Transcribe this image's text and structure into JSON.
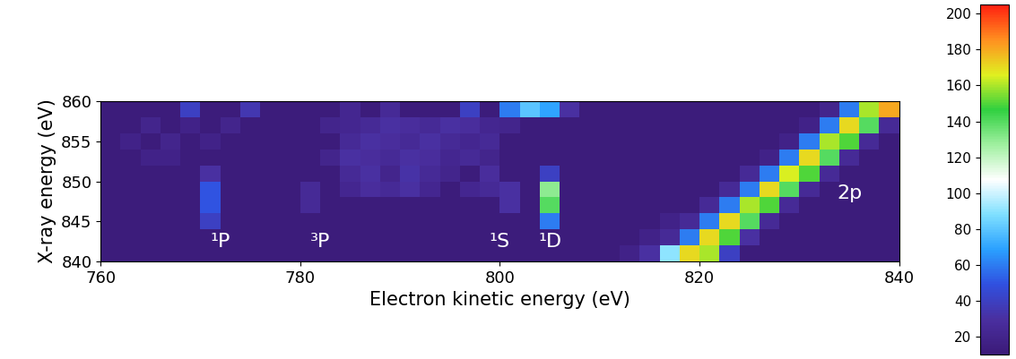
{
  "chart_data": {
    "type": "heatmap",
    "xlabel": "Electron kinetic energy (eV)",
    "ylabel": "X-ray energy (eV)",
    "x": [
      761,
      763,
      765,
      767,
      769,
      771,
      773,
      775,
      777,
      779,
      781,
      783,
      785,
      787,
      789,
      791,
      793,
      795,
      797,
      799,
      801,
      803,
      805,
      807,
      809,
      811,
      813,
      815,
      817,
      819,
      821,
      823,
      825,
      827,
      829,
      831,
      833,
      835,
      837,
      839
    ],
    "y": [
      841,
      843,
      845,
      847,
      849,
      851,
      853,
      855,
      857,
      859
    ],
    "cells": [
      [
        12,
        12,
        12,
        12,
        12,
        12,
        12,
        12,
        12,
        12,
        12,
        12,
        12,
        12,
        12,
        12,
        12,
        12,
        12,
        12,
        12,
        12,
        12,
        12,
        12,
        12,
        18,
        30,
        90,
        170,
        160,
        40,
        12,
        12,
        12,
        12,
        12,
        12,
        12,
        12
      ],
      [
        12,
        12,
        12,
        12,
        12,
        12,
        12,
        12,
        12,
        12,
        12,
        12,
        12,
        12,
        12,
        12,
        12,
        12,
        12,
        12,
        12,
        12,
        12,
        12,
        12,
        12,
        12,
        18,
        25,
        60,
        170,
        150,
        30,
        12,
        12,
        12,
        12,
        12,
        12,
        12
      ],
      [
        12,
        12,
        12,
        12,
        12,
        40,
        12,
        12,
        12,
        12,
        12,
        12,
        12,
        12,
        12,
        12,
        12,
        12,
        12,
        12,
        12,
        12,
        60,
        12,
        12,
        12,
        12,
        12,
        18,
        25,
        60,
        170,
        140,
        25,
        12,
        12,
        12,
        12,
        12,
        12
      ],
      [
        12,
        12,
        12,
        12,
        12,
        50,
        12,
        12,
        12,
        12,
        25,
        12,
        12,
        12,
        12,
        12,
        12,
        12,
        12,
        12,
        30,
        12,
        140,
        12,
        12,
        12,
        12,
        12,
        12,
        12,
        25,
        60,
        160,
        150,
        25,
        12,
        12,
        12,
        12,
        12
      ],
      [
        12,
        12,
        12,
        12,
        12,
        50,
        12,
        12,
        12,
        12,
        25,
        12,
        22,
        28,
        25,
        30,
        22,
        12,
        22,
        25,
        30,
        12,
        130,
        12,
        12,
        12,
        12,
        12,
        12,
        12,
        12,
        25,
        60,
        170,
        140,
        25,
        12,
        12,
        12,
        12
      ],
      [
        12,
        12,
        12,
        12,
        12,
        30,
        12,
        12,
        12,
        12,
        12,
        12,
        25,
        30,
        20,
        32,
        25,
        20,
        12,
        28,
        12,
        12,
        40,
        12,
        12,
        12,
        12,
        12,
        12,
        12,
        12,
        12,
        25,
        60,
        165,
        150,
        25,
        12,
        12,
        12
      ],
      [
        12,
        12,
        18,
        18,
        12,
        12,
        12,
        12,
        12,
        12,
        12,
        20,
        30,
        28,
        25,
        30,
        28,
        22,
        25,
        20,
        12,
        12,
        12,
        12,
        12,
        12,
        12,
        12,
        12,
        12,
        12,
        12,
        12,
        18,
        60,
        170,
        140,
        25,
        12,
        12
      ],
      [
        12,
        18,
        12,
        20,
        12,
        18,
        12,
        12,
        12,
        12,
        12,
        12,
        25,
        30,
        28,
        25,
        30,
        25,
        22,
        25,
        12,
        12,
        12,
        12,
        12,
        12,
        12,
        12,
        12,
        12,
        12,
        12,
        12,
        12,
        18,
        60,
        160,
        150,
        25,
        12
      ],
      [
        12,
        12,
        20,
        12,
        18,
        12,
        20,
        12,
        12,
        12,
        12,
        20,
        22,
        25,
        30,
        28,
        25,
        30,
        28,
        22,
        20,
        12,
        12,
        12,
        12,
        12,
        12,
        12,
        12,
        12,
        12,
        12,
        12,
        12,
        12,
        18,
        60,
        170,
        140,
        25
      ],
      [
        12,
        12,
        12,
        12,
        40,
        12,
        12,
        35,
        12,
        12,
        12,
        12,
        22,
        12,
        25,
        12,
        12,
        12,
        40,
        12,
        60,
        80,
        70,
        30,
        12,
        12,
        12,
        12,
        12,
        12,
        12,
        12,
        12,
        12,
        12,
        12,
        20,
        60,
        160,
        180
      ]
    ],
    "xlim": [
      760,
      840
    ],
    "xticks": [
      760,
      780,
      800,
      820,
      840
    ],
    "ylim": [
      840,
      860
    ],
    "yticks": [
      840,
      845,
      850,
      855,
      860
    ],
    "colorbar_range": [
      10,
      205
    ],
    "colorbar_ticks": [
      20,
      40,
      60,
      80,
      100,
      120,
      140,
      160,
      180,
      200
    ],
    "annotations": [
      {
        "text": "¹P",
        "x": 772,
        "y": 842.5
      },
      {
        "text": "³P",
        "x": 782,
        "y": 842.5
      },
      {
        "text": "¹S",
        "x": 800,
        "y": 842.5
      },
      {
        "text": "¹D",
        "x": 805,
        "y": 842.5
      },
      {
        "text": "2p",
        "x": 835,
        "y": 848.5
      }
    ]
  }
}
